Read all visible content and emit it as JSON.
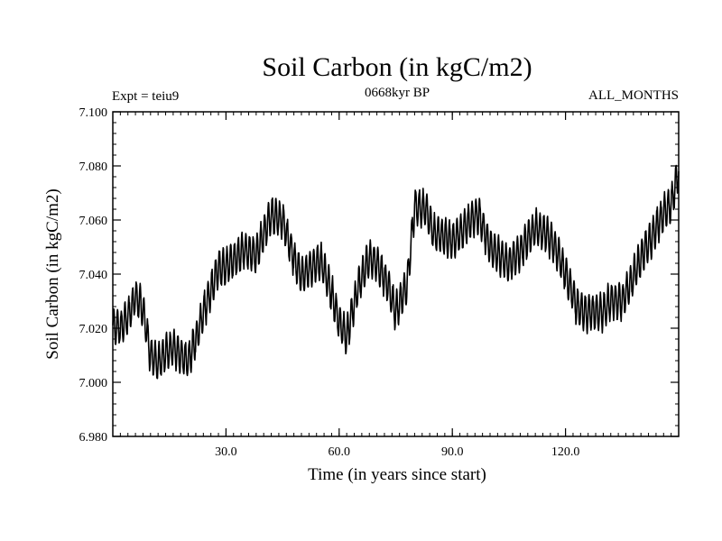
{
  "chart_data": {
    "type": "line",
    "title": "Soil Carbon (in kgC/m2)",
    "subtitle_left": "Expt = teiu9",
    "subtitle_center": "0668kyr BP",
    "subtitle_right": "ALL_MONTHS",
    "xlabel": "Time (in years since start)",
    "ylabel": "Soil Carbon (in kgC/m2)",
    "xlim": [
      0,
      150
    ],
    "ylim": [
      6.98,
      7.1
    ],
    "xticks": [
      30,
      60,
      90,
      120
    ],
    "xtick_labels": [
      "30.0",
      "60.0",
      "90.0",
      "120.0"
    ],
    "yticks": [
      6.98,
      7.0,
      7.02,
      7.04,
      7.06,
      7.08,
      7.1
    ],
    "ytick_labels": [
      "6.980",
      "7.000",
      "7.020",
      "7.040",
      "7.060",
      "7.080",
      "7.100"
    ],
    "series": [
      {
        "name": "Soil Carbon",
        "color": "#000000",
        "seasonal_amplitude": 0.0065,
        "note": "monthly values oscillate around the annual trend below with the given seasonal amplitude",
        "trend_x": [
          0,
          2,
          4,
          6,
          8,
          10,
          12,
          14,
          16,
          18,
          20,
          22,
          25,
          28,
          30,
          32,
          35,
          38,
          40,
          42,
          45,
          48,
          50,
          52,
          55,
          57,
          60,
          62,
          65,
          68,
          70,
          73,
          75,
          78,
          80,
          83,
          85,
          88,
          90,
          92,
          95,
          97,
          100,
          103,
          105,
          108,
          110,
          112,
          115,
          118,
          120,
          123,
          125,
          128,
          130,
          132,
          135,
          138,
          140,
          143,
          145,
          148,
          150
        ],
        "trend_y": [
          7.021,
          7.02,
          7.024,
          7.032,
          7.027,
          7.01,
          7.007,
          7.011,
          7.013,
          7.01,
          7.008,
          7.016,
          7.03,
          7.042,
          7.043,
          7.045,
          7.049,
          7.047,
          7.055,
          7.062,
          7.06,
          7.046,
          7.039,
          7.042,
          7.045,
          7.038,
          7.022,
          7.017,
          7.035,
          7.046,
          7.044,
          7.036,
          7.026,
          7.036,
          7.065,
          7.064,
          7.055,
          7.054,
          7.052,
          7.055,
          7.06,
          7.062,
          7.05,
          7.046,
          7.044,
          7.048,
          7.053,
          7.057,
          7.055,
          7.048,
          7.04,
          7.028,
          7.026,
          7.026,
          7.026,
          7.03,
          7.03,
          7.039,
          7.046,
          7.054,
          7.06,
          7.066,
          7.078
        ]
      }
    ]
  }
}
